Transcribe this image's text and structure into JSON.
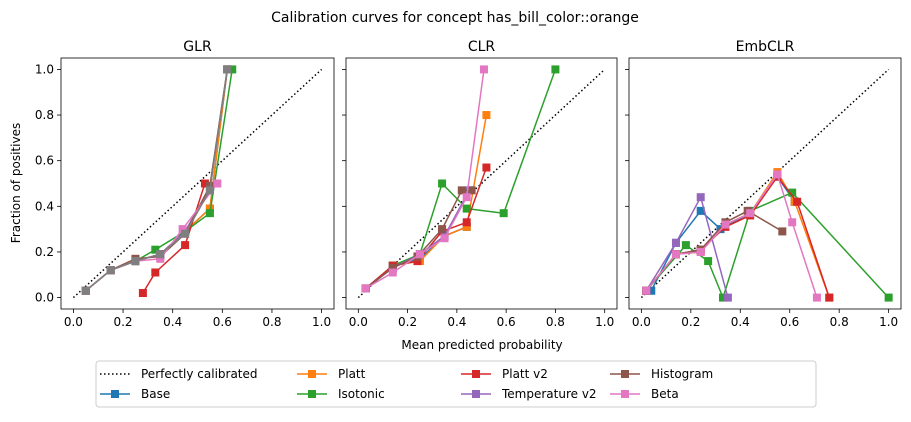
{
  "suptitle": "Calibration curves for concept has_bill_color::orange",
  "xlabel": "Mean predicted probability",
  "ylabel": "Fraction of positives",
  "ticks": {
    "x": [
      "0.0",
      "0.2",
      "0.4",
      "0.6",
      "0.8",
      "1.0"
    ],
    "y": [
      "0.0",
      "0.2",
      "0.4",
      "0.6",
      "0.8",
      "1.0"
    ]
  },
  "legend": {
    "placement": "bottom-center",
    "ncol": 5,
    "entries": [
      {
        "label": "Perfectly calibrated",
        "color": "#000000",
        "style": "dotted"
      },
      {
        "label": "Base",
        "color": "#1f77b4",
        "style": "solid-square"
      },
      {
        "label": "Platt",
        "color": "#ff7f0e",
        "style": "solid-square"
      },
      {
        "label": "Isotonic",
        "color": "#2ca02c",
        "style": "solid-square"
      },
      {
        "label": "Platt v2",
        "color": "#d62728",
        "style": "solid-square"
      },
      {
        "label": "Temperature v2",
        "color": "#9467bd",
        "style": "solid-square"
      },
      {
        "label": "Histogram",
        "color": "#8c564b",
        "style": "solid-square"
      },
      {
        "label": "Beta",
        "color": "#e377c2",
        "style": "solid-square"
      }
    ]
  },
  "chart_data": [
    {
      "type": "line",
      "title": "GLR",
      "xlim": [
        -0.05,
        1.05
      ],
      "ylim": [
        -0.05,
        1.05
      ],
      "grid": false,
      "series": [
        {
          "name": "Perfectly calibrated",
          "color": "#000000",
          "dash": "dotted",
          "marker": false,
          "x": [
            0,
            1
          ],
          "y": [
            0,
            1
          ]
        },
        {
          "name": "Base",
          "color": "#1f77b4",
          "x": [
            0.05,
            0.15,
            0.25,
            0.35,
            0.45,
            0.55,
            0.62
          ],
          "y": [
            0.03,
            0.12,
            0.16,
            0.19,
            0.29,
            0.39,
            1.0
          ]
        },
        {
          "name": "Platt",
          "color": "#ff7f0e",
          "x": [
            0.05,
            0.15,
            0.25,
            0.35,
            0.45,
            0.55,
            0.62
          ],
          "y": [
            0.03,
            0.12,
            0.16,
            0.19,
            0.29,
            0.39,
            1.0
          ]
        },
        {
          "name": "Isotonic",
          "color": "#2ca02c",
          "x": [
            0.05,
            0.15,
            0.25,
            0.33,
            0.45,
            0.55,
            0.64
          ],
          "y": [
            0.03,
            0.12,
            0.16,
            0.21,
            0.29,
            0.37,
            1.0
          ]
        },
        {
          "name": "Platt v2",
          "color": "#d62728",
          "x": [
            0.28,
            0.33,
            0.45,
            0.53
          ],
          "y": [
            0.02,
            0.11,
            0.23,
            0.5
          ]
        },
        {
          "name": "Temperature v2",
          "color": "#9467bd",
          "x": [
            0.05,
            0.15,
            0.25,
            0.35,
            0.45,
            0.55,
            0.62
          ],
          "y": [
            0.03,
            0.12,
            0.16,
            0.19,
            0.29,
            0.48,
            1.0
          ]
        },
        {
          "name": "Histogram",
          "color": "#8c564b",
          "x": [
            0.05,
            0.15,
            0.25,
            0.35,
            0.45,
            0.55,
            0.62
          ],
          "y": [
            0.03,
            0.12,
            0.17,
            0.18,
            0.28,
            0.49,
            1.0
          ]
        },
        {
          "name": "Beta",
          "color": "#e377c2",
          "x": [
            0.05,
            0.15,
            0.25,
            0.35,
            0.44,
            0.58
          ],
          "y": [
            0.03,
            0.12,
            0.16,
            0.17,
            0.3,
            0.5
          ]
        },
        {
          "name": "Gray",
          "color": "#7f7f7f",
          "x": [
            0.05,
            0.15,
            0.25,
            0.35,
            0.45,
            0.55,
            0.62
          ],
          "y": [
            0.03,
            0.12,
            0.16,
            0.19,
            0.28,
            0.47,
            1.0
          ]
        }
      ]
    },
    {
      "type": "line",
      "title": "CLR",
      "xlim": [
        -0.05,
        1.05
      ],
      "ylim": [
        -0.05,
        1.05
      ],
      "grid": false,
      "series": [
        {
          "name": "Perfectly calibrated",
          "color": "#000000",
          "dash": "dotted",
          "marker": false,
          "x": [
            0,
            1
          ],
          "y": [
            0,
            1
          ]
        },
        {
          "name": "Base",
          "color": "#1f77b4",
          "x": [
            0.03,
            0.14,
            0.25,
            0.35,
            0.44
          ],
          "y": [
            0.04,
            0.14,
            0.17,
            0.27,
            0.31
          ]
        },
        {
          "name": "Platt",
          "color": "#ff7f0e",
          "x": [
            0.03,
            0.14,
            0.25,
            0.35,
            0.44,
            0.52
          ],
          "y": [
            0.04,
            0.14,
            0.16,
            0.27,
            0.31,
            0.8
          ]
        },
        {
          "name": "Isotonic",
          "color": "#2ca02c",
          "x": [
            0.03,
            0.14,
            0.25,
            0.34,
            0.44,
            0.59,
            0.8
          ],
          "y": [
            0.04,
            0.14,
            0.19,
            0.5,
            0.39,
            0.37,
            1.0
          ]
        },
        {
          "name": "Platt v2",
          "color": "#d62728",
          "x": [
            0.03,
            0.14,
            0.24,
            0.34,
            0.44,
            0.52
          ],
          "y": [
            0.04,
            0.14,
            0.16,
            0.29,
            0.33,
            0.57
          ]
        },
        {
          "name": "Temperature v2",
          "color": "#9467bd",
          "x": [
            0.03,
            0.14,
            0.25,
            0.35,
            0.45
          ],
          "y": [
            0.04,
            0.13,
            0.19,
            0.27,
            0.47
          ]
        },
        {
          "name": "Histogram",
          "color": "#8c564b",
          "x": [
            0.03,
            0.14,
            0.24,
            0.34,
            0.42,
            0.46
          ],
          "y": [
            0.04,
            0.13,
            0.18,
            0.3,
            0.47,
            0.47
          ]
        },
        {
          "name": "Beta",
          "color": "#e377c2",
          "x": [
            0.03,
            0.14,
            0.25,
            0.35,
            0.44,
            0.51
          ],
          "y": [
            0.04,
            0.11,
            0.19,
            0.26,
            0.44,
            1.0
          ]
        }
      ]
    },
    {
      "type": "line",
      "title": "EmbCLR",
      "xlim": [
        -0.05,
        1.05
      ],
      "ylim": [
        -0.05,
        1.05
      ],
      "grid": false,
      "series": [
        {
          "name": "Perfectly calibrated",
          "color": "#000000",
          "dash": "dotted",
          "marker": false,
          "x": [
            0,
            1
          ],
          "y": [
            0,
            1
          ]
        },
        {
          "name": "Base",
          "color": "#1f77b4",
          "x": [
            0.04,
            0.14,
            0.24,
            0.32,
            0.44,
            0.55,
            0.62
          ],
          "y": [
            0.03,
            0.24,
            0.38,
            0.3,
            0.37,
            0.53,
            0.42
          ]
        },
        {
          "name": "Platt",
          "color": "#ff7f0e",
          "x": [
            0.02,
            0.14,
            0.24,
            0.34,
            0.44,
            0.55,
            0.62,
            0.76
          ],
          "y": [
            0.03,
            0.19,
            0.2,
            0.32,
            0.37,
            0.55,
            0.42,
            0.0
          ]
        },
        {
          "name": "Isotonic",
          "color": "#2ca02c",
          "x": [
            0.02,
            0.18,
            0.27,
            0.33,
            0.44,
            0.61,
            1.0
          ],
          "y": [
            0.03,
            0.23,
            0.16,
            0.0,
            0.38,
            0.46,
            0.0
          ]
        },
        {
          "name": "Platt v2",
          "color": "#d62728",
          "x": [
            0.02,
            0.14,
            0.24,
            0.34,
            0.44,
            0.55,
            0.63,
            0.76
          ],
          "y": [
            0.03,
            0.19,
            0.21,
            0.31,
            0.36,
            0.53,
            0.42,
            0.0
          ]
        },
        {
          "name": "Temperature v2",
          "color": "#9467bd",
          "x": [
            0.02,
            0.14,
            0.24,
            0.35
          ],
          "y": [
            0.03,
            0.24,
            0.44,
            0.0
          ]
        },
        {
          "name": "Histogram",
          "color": "#8c564b",
          "x": [
            0.02,
            0.14,
            0.24,
            0.34,
            0.43,
            0.57
          ],
          "y": [
            0.03,
            0.19,
            0.21,
            0.33,
            0.38,
            0.29
          ]
        },
        {
          "name": "Beta",
          "color": "#e377c2",
          "x": [
            0.02,
            0.14,
            0.24,
            0.34,
            0.44,
            0.55,
            0.61,
            0.71
          ],
          "y": [
            0.03,
            0.19,
            0.2,
            0.32,
            0.37,
            0.54,
            0.33,
            0.0
          ]
        }
      ]
    }
  ]
}
